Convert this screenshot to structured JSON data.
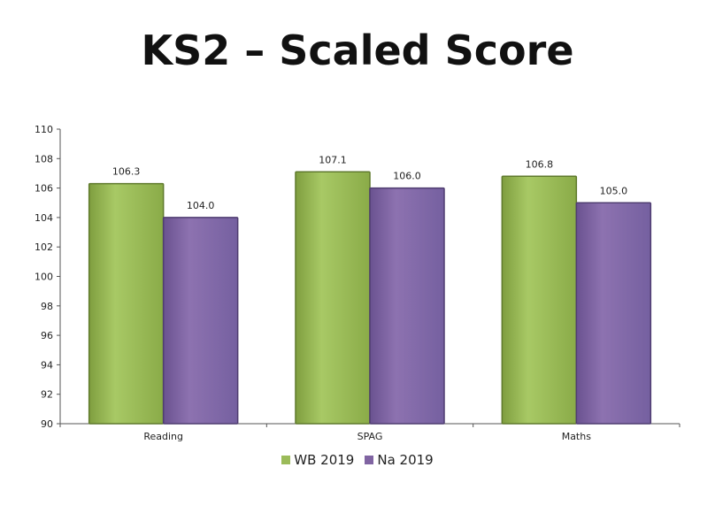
{
  "title": "KS2 – Scaled Score",
  "colors": {
    "WB 2019": "#9bbb59",
    "Na 2019": "#8064a2"
  },
  "chart_data": {
    "type": "bar",
    "title": "KS2 – Scaled Score",
    "categories": [
      "Reading",
      "SPAG",
      "Maths"
    ],
    "series": [
      {
        "name": "WB 2019",
        "values": [
          106.3,
          107.1,
          106.8
        ],
        "labels": [
          "106.3",
          "107.1",
          "106.8"
        ]
      },
      {
        "name": "Na 2019",
        "values": [
          104.0,
          106.0,
          105.0
        ],
        "labels": [
          "104.0",
          "106.0",
          "105.0"
        ]
      }
    ],
    "ylim": [
      90,
      110
    ],
    "yticks": [
      90,
      92,
      94,
      96,
      98,
      100,
      102,
      104,
      106,
      108,
      110
    ],
    "legend": "bottom",
    "grid": false
  }
}
